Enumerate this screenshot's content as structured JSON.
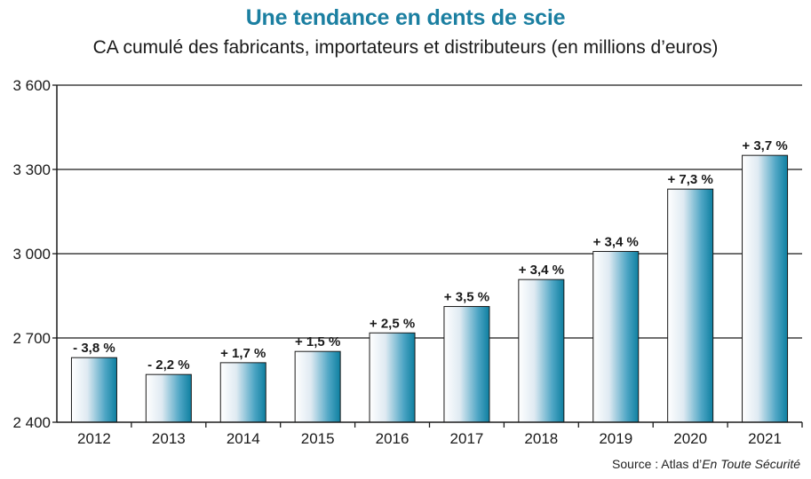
{
  "chart_data": {
    "type": "bar",
    "title": "Une tendance en dents de scie",
    "subtitle": "CA cumulé des fabricants, importateurs et distributeurs (en millions d’euros)",
    "categories": [
      "2012",
      "2013",
      "2014",
      "2015",
      "2016",
      "2017",
      "2018",
      "2019",
      "2020",
      "2021"
    ],
    "values": [
      2630,
      2570,
      2612,
      2652,
      2718,
      2812,
      2908,
      3008,
      3230,
      3350
    ],
    "data_labels": [
      "- 3,8 %",
      "- 2,2 %",
      "+ 1,7 %",
      "+ 1,5 %",
      "+ 2,5 %",
      "+ 3,5 %",
      "+ 3,4 %",
      "+ 3,4 %",
      "+ 7,3 %",
      "+ 3,7 %"
    ],
    "ylim": [
      2400,
      3600
    ],
    "yticks": [
      2400,
      2700,
      3000,
      3300,
      3600
    ],
    "ytick_labels": [
      "2 400",
      "2 700",
      "3 000",
      "3 300",
      "3 600"
    ],
    "grid": true,
    "bar_colors": {
      "light": "#ffffff",
      "dark": "#0e7fa0"
    }
  },
  "source": {
    "prefix": "Source : Atlas d’",
    "italic": "En Toute Sécurité"
  }
}
